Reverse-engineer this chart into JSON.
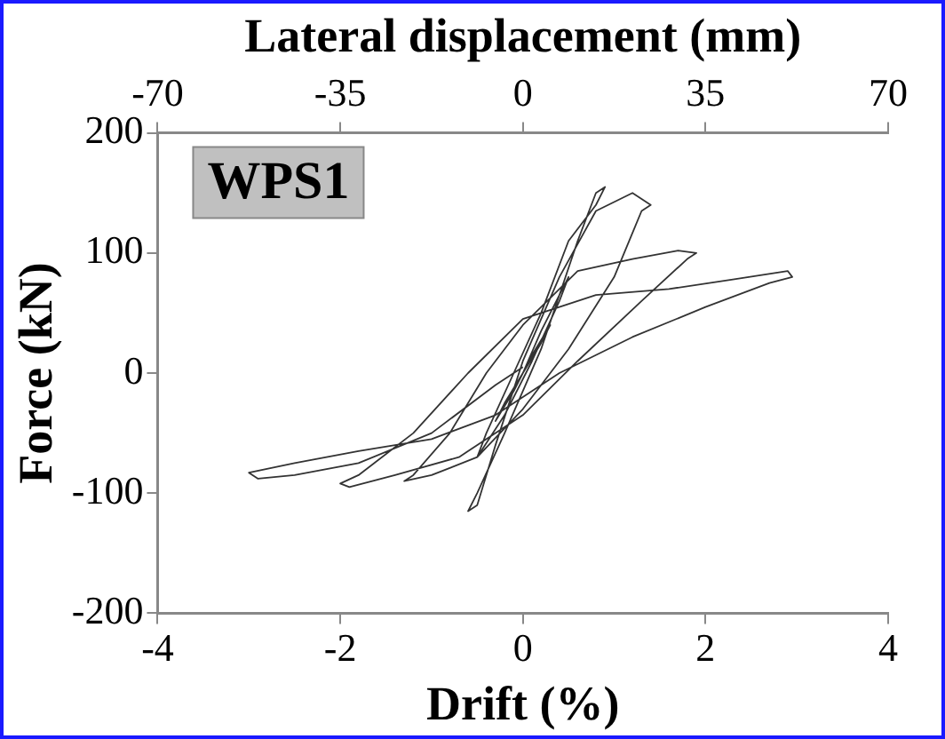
{
  "chart_data": {
    "type": "line",
    "xlabel": "Drift (%)",
    "ylabel": "Force (kN)",
    "x2label": "Lateral displacement (mm)",
    "xlim": [
      -4,
      4
    ],
    "xticks": [
      -4,
      -2,
      0,
      2,
      4
    ],
    "ylim": [
      -200,
      200
    ],
    "yticks": [
      -200,
      -100,
      0,
      100,
      200
    ],
    "x2lim": [
      -70,
      70
    ],
    "x2ticks": [
      -70,
      -35,
      0,
      35,
      70
    ],
    "grid": false,
    "legend": false,
    "marker": "none",
    "line_style": "solid",
    "annotations": [
      "WPS1"
    ],
    "series": [
      {
        "color": "#333333",
        "x": [
          0,
          0.1,
          0.3,
          0.2,
          0,
          -0.1,
          -0.3,
          -0.2,
          0,
          0.2,
          0.5,
          0.4,
          0.1,
          -0.2,
          -0.5,
          -0.4,
          -0.1,
          0.2,
          0.5,
          0.8,
          0.9,
          0.8,
          0.6,
          0.2,
          -0.2,
          -0.5,
          -0.6,
          -0.5,
          -0.3,
          0,
          0.4,
          0.8,
          1.2,
          1.4,
          1.3,
          1.0,
          0.5,
          0,
          -0.5,
          -1.0,
          -1.3,
          -1.2,
          -0.8,
          -0.4,
          0,
          0.6,
          1.2,
          1.7,
          1.9,
          1.8,
          1.3,
          0.6,
          0,
          -0.7,
          -1.4,
          -1.9,
          -2.0,
          -1.8,
          -1.2,
          -0.6,
          0,
          0.8,
          1.6,
          2.3,
          2.9,
          2.95,
          2.7,
          2.0,
          1.2,
          0.4,
          -0.3,
          -1.0,
          -1.8,
          -2.5,
          -3.0,
          -2.9,
          -2.5,
          -1.8,
          -1.0,
          -0.3,
          0
        ],
        "values": [
          0,
          15,
          40,
          25,
          0,
          -15,
          -40,
          -25,
          0,
          35,
          80,
          60,
          10,
          -35,
          -70,
          -50,
          0,
          50,
          110,
          140,
          155,
          150,
          110,
          20,
          -50,
          -100,
          -115,
          -110,
          -60,
          10,
          80,
          135,
          150,
          140,
          135,
          80,
          20,
          -30,
          -70,
          -85,
          -90,
          -85,
          -50,
          0,
          40,
          85,
          95,
          102,
          100,
          95,
          60,
          10,
          -35,
          -70,
          -85,
          -95,
          -92,
          -85,
          -50,
          0,
          45,
          65,
          70,
          78,
          85,
          80,
          75,
          55,
          30,
          0,
          -35,
          -55,
          -65,
          -75,
          -83,
          -88,
          -85,
          -75,
          -50,
          -10,
          5
        ]
      }
    ]
  }
}
